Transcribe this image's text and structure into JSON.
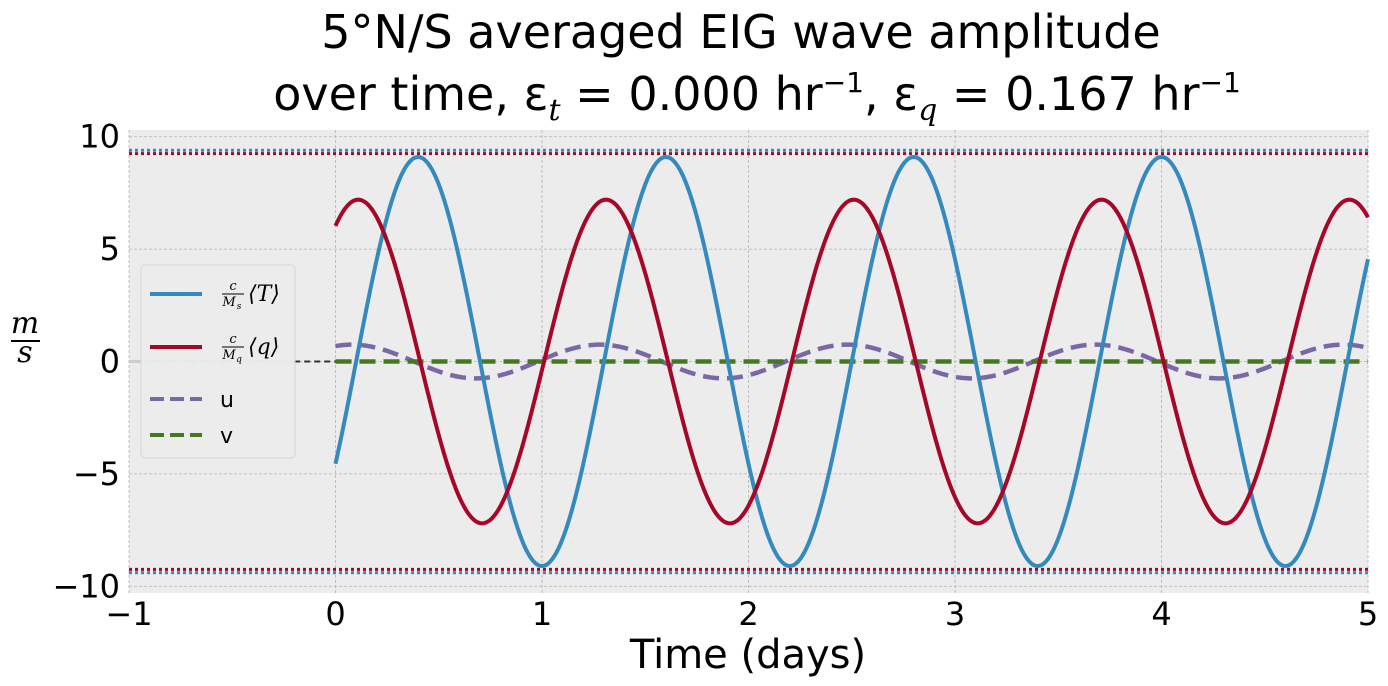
{
  "chart_data": {
    "type": "line",
    "title_line1": "5°N/S averaged EIG wave amplitude",
    "title_line2": {
      "prefix": "over time, ε",
      "sub_t": "t",
      "eq1": " = 0.000 hr",
      "sup": "−1",
      "sep": ",  ε",
      "sub_q": "q",
      "eq2": " = 0.167 hr"
    },
    "xlabel": "Time (days)",
    "ylabel": {
      "num": "m",
      "den": "s"
    },
    "xlim": [
      -1,
      5
    ],
    "ylim": [
      -10.3,
      10.3
    ],
    "xticks": [
      -1,
      0,
      1,
      2,
      3,
      4,
      5
    ],
    "xtick_labels": [
      "−1",
      "0",
      "1",
      "2",
      "3",
      "4",
      "5"
    ],
    "yticks": [
      -10,
      -5,
      0,
      5,
      10
    ],
    "ytick_labels": [
      "−10",
      "−5",
      "0",
      "5",
      "10"
    ],
    "grid": true,
    "legend_position": "center-left",
    "background": "#ececec",
    "reference_lines": [
      {
        "y": 9.4,
        "color": "#348abd",
        "style": "dotted"
      },
      {
        "y": 9.25,
        "color": "#a60628",
        "style": "dotted"
      },
      {
        "y": -9.4,
        "color": "#348abd",
        "style": "dotted"
      },
      {
        "y": -9.25,
        "color": "#a60628",
        "style": "dotted"
      }
    ],
    "pre_zero_line": {
      "x": [
        -1,
        0
      ],
      "y": 0,
      "colors": [
        "#cccccc",
        "#333333"
      ],
      "style": "dashed"
    },
    "series": [
      {
        "name": "c/Ms ⟨T⟩",
        "legend": {
          "num": "c",
          "den": "M",
          "den_sub": "s",
          "var": "T"
        },
        "color": "#348abd",
        "style": "solid",
        "amplitude": 9.1,
        "period_days": 1.2,
        "phase_day": 0.4
      },
      {
        "name": "c/Mq ⟨q⟩",
        "legend": {
          "num": "c",
          "den": "M",
          "den_sub": "q",
          "var": "q"
        },
        "color": "#a60628",
        "style": "solid",
        "amplitude": 7.2,
        "period_days": 1.2,
        "phase_day": 0.11
      },
      {
        "name": "u",
        "color": "#7a68a6",
        "style": "dashed",
        "amplitude": 0.75,
        "period_days": 1.2,
        "phase_day": 0.08
      },
      {
        "name": "v",
        "color": "#467821",
        "style": "dashed",
        "amplitude": 0.0,
        "period_days": 1.2,
        "phase_day": 0
      }
    ]
  }
}
